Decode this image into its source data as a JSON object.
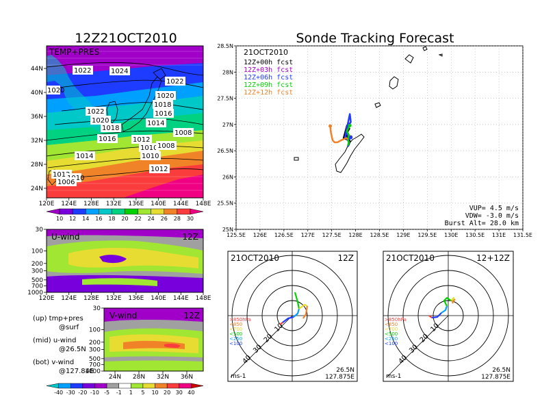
{
  "left_title": "12Z21OCT2010",
  "right_title": "Sonde Tracking Forecast",
  "colors": {
    "purple": "#a000c8",
    "violet": "#7800dc",
    "blue": "#1e3cff",
    "lightblue": "#00a0ff",
    "cyan": "#00c8c8",
    "teal": "#00dc82",
    "green": "#00d200",
    "lime": "#a0e632",
    "yellow": "#e6dc32",
    "orange": "#f08228",
    "red": "#fa3c3c",
    "magenta": "#f00082"
  },
  "chart_data": [
    {
      "type": "heatmap",
      "title": "TEMP+PRES",
      "x_ticks": [
        "120E",
        "124E",
        "128E",
        "132E",
        "136E",
        "140E",
        "144E",
        "148E"
      ],
      "y_ticks": [
        "24N",
        "28N",
        "32N",
        "36N",
        "40N",
        "44N"
      ],
      "colorbar_labels": [
        "10",
        "12",
        "14",
        "16",
        "18",
        "20",
        "22",
        "24",
        "26",
        "28",
        "30"
      ],
      "isobar_labels": [
        "1022",
        "1024",
        "1022",
        "1020",
        "1020",
        "1022",
        "1020",
        "1018",
        "1016",
        "1018",
        "1014",
        "1016",
        "1012",
        "1008",
        "1010",
        "1008",
        "1014",
        "1010",
        "1012",
        "1012",
        "1010",
        "1006"
      ]
    },
    {
      "type": "heatmap",
      "title": "U-wind",
      "time_label": "12Z",
      "x_ticks": [
        "120E",
        "124E",
        "128E",
        "132E",
        "136E",
        "140E",
        "144E",
        "148E"
      ],
      "y_ticks": [
        "30",
        "100",
        "200",
        "300",
        "500",
        "700",
        "1000"
      ]
    },
    {
      "type": "heatmap",
      "title": "V-wind",
      "time_label": "12Z",
      "x_ticks": [
        "24N",
        "28N",
        "32N",
        "36N"
      ],
      "y_ticks": [
        "30",
        "100",
        "200",
        "300",
        "500",
        "700",
        "1000"
      ],
      "colorbar_labels": [
        "-40",
        "-30",
        "-20",
        "-10",
        "-5",
        "-1",
        "1",
        "5",
        "10",
        "20",
        "30",
        "40"
      ]
    },
    {
      "type": "line",
      "date": "21OCT2010",
      "x_ticks": [
        "125.5E",
        "126E",
        "126.5E",
        "127E",
        "127.5E",
        "128E",
        "128.5E",
        "129E",
        "129.5E",
        "130E",
        "130.5E",
        "131E",
        "131.5E"
      ],
      "y_ticks": [
        "25N",
        "25.5N",
        "26N",
        "26.5N",
        "27N",
        "27.5N",
        "28N",
        "28.5N"
      ],
      "xlim": [
        125.5,
        131.5
      ],
      "ylim": [
        25,
        28.5
      ],
      "series": [
        {
          "name": "12Z+00h fcst",
          "color": "#000000",
          "x": [
            127.84,
            127.86,
            127.88,
            127.85,
            127.8,
            127.83,
            127.87,
            127.82,
            127.75,
            127.83,
            127.9
          ],
          "y": [
            26.58,
            26.62,
            26.68,
            26.74,
            26.8,
            26.86,
            26.92,
            26.98,
            26.74,
            26.71,
            26.76
          ]
        },
        {
          "name": "12Z+03h fcst",
          "color": "#a000c8",
          "x": [
            127.84,
            127.86,
            127.84,
            127.85,
            127.8,
            127.82,
            127.87,
            127.78,
            127.84,
            127.9
          ],
          "y": [
            26.58,
            26.65,
            26.72,
            26.79,
            26.86,
            26.95,
            27.02,
            26.76,
            26.71,
            26.76
          ]
        },
        {
          "name": "12Z+06h fcst",
          "color": "#1e3cff",
          "x": [
            127.84,
            127.86,
            127.84,
            127.85,
            127.8,
            127.84,
            127.9,
            127.88,
            127.78,
            127.84,
            127.9
          ],
          "y": [
            26.58,
            26.65,
            26.72,
            26.79,
            26.86,
            26.95,
            27.05,
            27.2,
            26.76,
            26.7,
            26.75
          ]
        },
        {
          "name": "12Z+09h fcst",
          "color": "#00d200",
          "x": [
            127.84,
            127.86,
            127.84,
            127.86,
            127.82,
            127.85,
            127.88
          ],
          "y": [
            26.6,
            26.66,
            26.72,
            26.8,
            26.87,
            26.93,
            26.98
          ]
        },
        {
          "name": "12Z+12h fcst",
          "color": "#f08228",
          "x": [
            127.84,
            127.8,
            127.7,
            127.62,
            127.56,
            127.52,
            127.5,
            127.48,
            127.47
          ],
          "y": [
            26.72,
            26.74,
            26.7,
            26.66,
            26.66,
            26.7,
            26.78,
            26.87,
            26.97
          ]
        }
      ],
      "annotations": [
        "VUP= 4.5 m/s",
        "VDW= -3.0 m/s",
        "Burst Alt= 28.0 km"
      ]
    },
    {
      "type": "line",
      "title": "21OCT2010",
      "time_label": "12Z",
      "ring_labels": [
        "10",
        "20",
        "30",
        "40"
      ],
      "legend": [
        ">850hPa",
        "<850",
        "<700",
        "<500",
        "<250",
        "<100"
      ],
      "unit": "ms-1",
      "location": [
        "26.5N",
        "127.875E"
      ]
    },
    {
      "type": "line",
      "title": "21OCT2010",
      "time_label": "12+12Z",
      "ring_labels": [
        "10",
        "20",
        "30",
        "40"
      ],
      "legend": [
        ">850hPa",
        "<850",
        "<700",
        "<500",
        "<250",
        "<100"
      ],
      "unit": "ms-1",
      "location": [
        "26.5N",
        "127.875E"
      ]
    }
  ],
  "captions": {
    "up1": "(up)  tmp+pres",
    "up2": "@surf",
    "mid1": "(mid)  u-wind",
    "mid2": "@26.5N",
    "bot1": "(bot)  v-wind",
    "bot2": "@127.84E"
  }
}
